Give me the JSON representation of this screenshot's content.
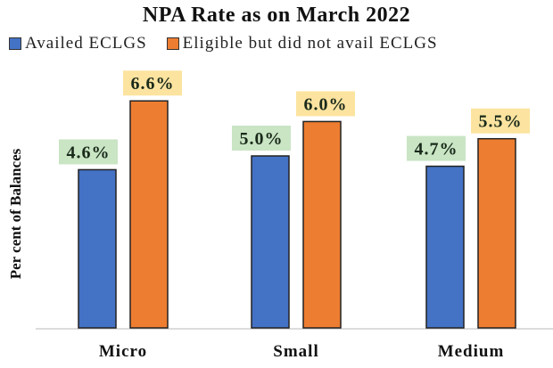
{
  "chart_data": {
    "type": "bar",
    "title": "NPA Rate as on March 2022",
    "xlabel": "",
    "ylabel": "Per cent of Balances",
    "categories": [
      "Micro",
      "Small",
      "Medium"
    ],
    "series": [
      {
        "name": "Availed ECLGS",
        "color": "#4472c4",
        "label_bg": "#c9e5c4",
        "values": [
          4.6,
          5.0,
          4.7
        ],
        "labels": [
          "4.6%",
          "5.0%",
          "4.7%"
        ]
      },
      {
        "name": "Eligible but did not avail ECLGS",
        "color": "#ed7d31",
        "label_bg": "#fce4a0",
        "values": [
          6.6,
          6.0,
          5.5
        ],
        "labels": [
          "6.6%",
          "6.0%",
          "5.5%"
        ]
      }
    ],
    "ylim": [
      0,
      7
    ],
    "grid": false,
    "legend": "top"
  }
}
